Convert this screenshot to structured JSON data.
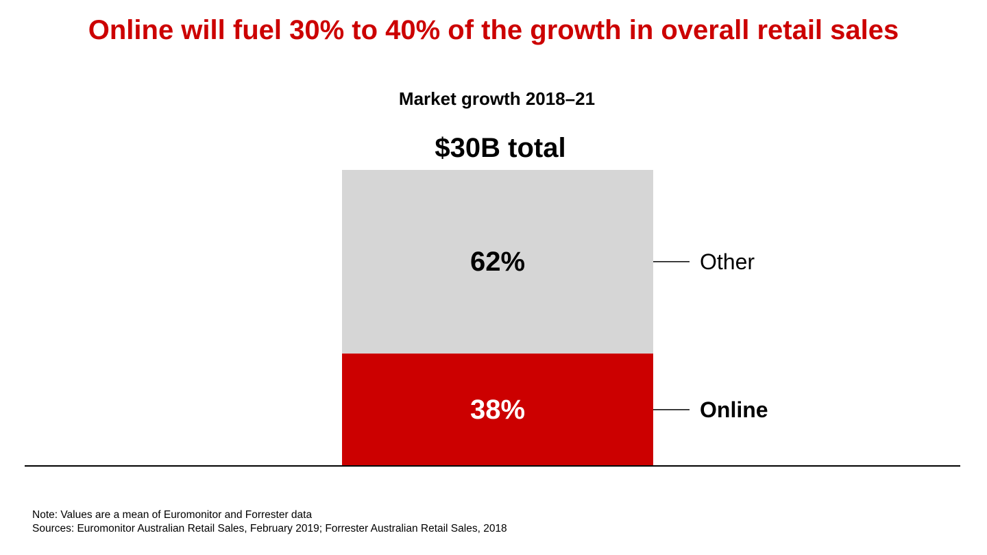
{
  "headline": "Online will fuel 30% to 40% of the growth in overall retail sales",
  "colors": {
    "headline": "#cc0000",
    "online": "#cc0000",
    "other": "#d6d6d6",
    "text": "#000000"
  },
  "chart_data": {
    "type": "bar",
    "stacked": true,
    "title": "Market growth 2018–21",
    "total_label": "$30B total",
    "total_value_billions": 30,
    "unit": "%",
    "ylim": [
      0,
      100
    ],
    "series": [
      {
        "name": "Online",
        "value": 38,
        "data_label": "38%",
        "color": "#cc0000",
        "label_emphasis": "bold"
      },
      {
        "name": "Other",
        "value": 62,
        "data_label": "62%",
        "color": "#d6d6d6",
        "label_emphasis": "regular"
      }
    ]
  },
  "footnotes": {
    "note": "Note: Values are a mean of Euromonitor and Forrester data",
    "sources": "Sources: Euromonitor Australian Retail Sales, February 2019; Forrester Australian Retail Sales, 2018"
  }
}
